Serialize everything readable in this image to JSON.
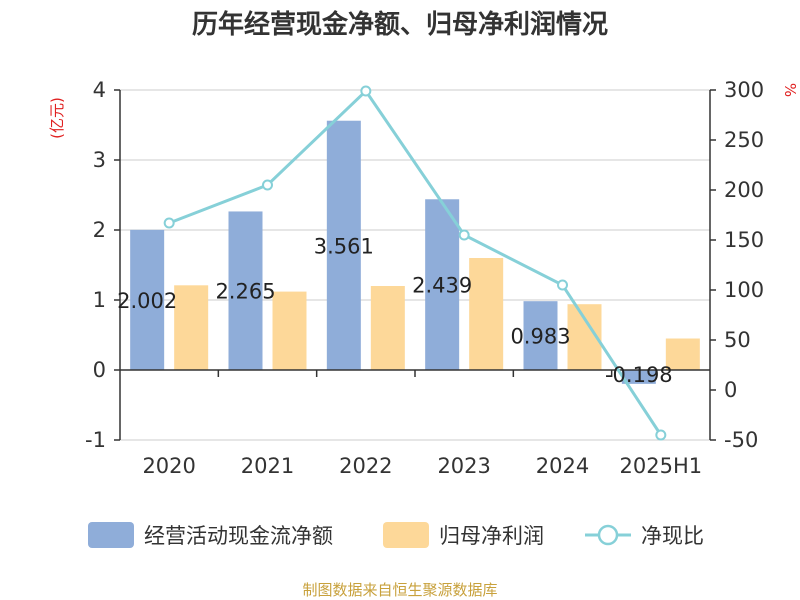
{
  "chart_data": {
    "type": "bar",
    "title": "历年经营现金净额、归母净利润情况",
    "categories": [
      "2020",
      "2021",
      "2022",
      "2023",
      "2024",
      "2025H1"
    ],
    "series": [
      {
        "name": "经营活动现金流净额",
        "type": "bar",
        "axis": "left",
        "color": "#8fadd9",
        "values": [
          2.002,
          2.265,
          3.561,
          2.439,
          0.983,
          -0.198
        ]
      },
      {
        "name": "归母净利润",
        "type": "bar",
        "axis": "left",
        "color": "#fdd899",
        "values": [
          1.21,
          1.12,
          1.2,
          1.6,
          0.94,
          0.45
        ]
      },
      {
        "name": "净现比",
        "type": "line",
        "axis": "right",
        "color": "#86d0d8",
        "values": [
          167,
          205,
          299,
          155,
          105,
          -45
        ]
      }
    ],
    "data_labels": [
      "2.002",
      "2.265",
      "3.561",
      "2.439",
      "0.983",
      "-0.198"
    ],
    "y_left": {
      "label": "(亿元)",
      "ylim": [
        -1,
        4
      ],
      "ticks": [
        "4",
        "3",
        "2",
        "1",
        "0",
        "-1"
      ],
      "color": "#e02020"
    },
    "y_right": {
      "label": "%",
      "ylim": [
        -50,
        300
      ],
      "ticks": [
        "300",
        "250",
        "200",
        "150",
        "100",
        "50",
        "0",
        "-50"
      ],
      "color": "#e02020"
    },
    "grid": true,
    "legend_position": "bottom",
    "source": "制图数据来自恒生聚源数据库"
  }
}
